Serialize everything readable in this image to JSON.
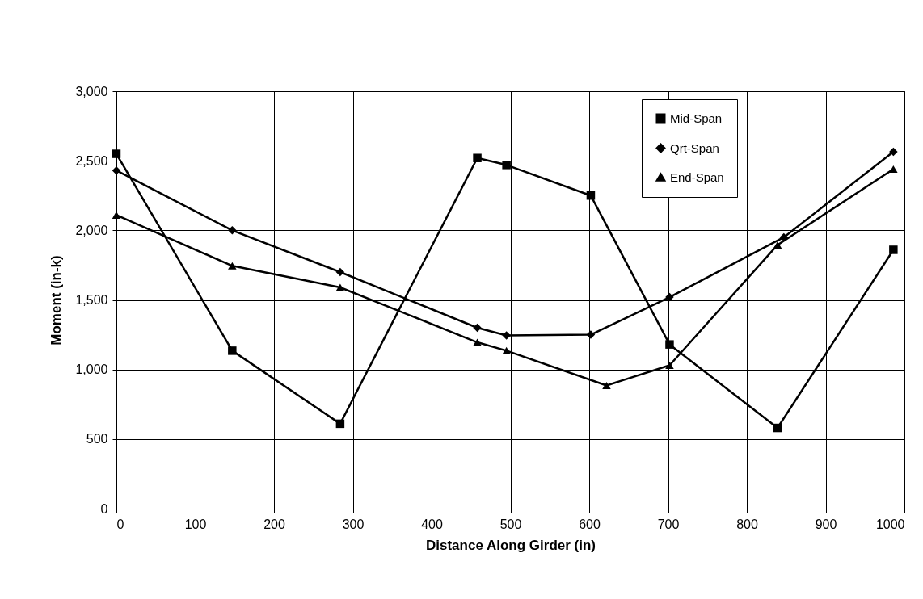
{
  "chart_data": {
    "type": "line",
    "xlabel": "Distance Along Girder (in)",
    "ylabel": "Moment (in-k)",
    "xlim": [
      0,
      1000
    ],
    "xticks": [
      0,
      100,
      200,
      300,
      400,
      500,
      600,
      700,
      800,
      900,
      1000
    ],
    "ylim": [
      0,
      3000
    ],
    "yticks": [
      0,
      500,
      {
        "value": 1000,
        "label": "1,000"
      },
      {
        "value": 1500,
        "label": "1,500"
      },
      {
        "value": 2000,
        "label": "2,000"
      },
      {
        "value": 2500,
        "label": "2,500"
      },
      {
        "value": 3000,
        "label": "3,000"
      }
    ],
    "grid": true,
    "legend": "top right",
    "line_style": "solid",
    "series": [
      {
        "name": "Mid-Span",
        "color": "#000000",
        "marker": "square",
        "x": [
          0,
          147,
          284,
          458,
          495,
          602,
          702,
          839,
          986
        ],
        "values": [
          2550,
          1135,
          610,
          2520,
          2470,
          2250,
          1180,
          580,
          1860
        ]
      },
      {
        "name": "Qrt-Span",
        "color": "#000000",
        "marker": "diamond",
        "x": [
          0,
          147,
          284,
          458,
          495,
          602,
          702,
          847,
          986
        ],
        "values": [
          2430,
          2000,
          1700,
          1300,
          1245,
          1250,
          1520,
          1950,
          2565
        ]
      },
      {
        "name": "End-Span",
        "color": "#000000",
        "marker": "triangle",
        "x": [
          0,
          147,
          284,
          458,
          495,
          622,
          702,
          839,
          986
        ],
        "values": [
          2110,
          1745,
          1590,
          1195,
          1135,
          885,
          1030,
          1895,
          2440
        ]
      }
    ]
  }
}
